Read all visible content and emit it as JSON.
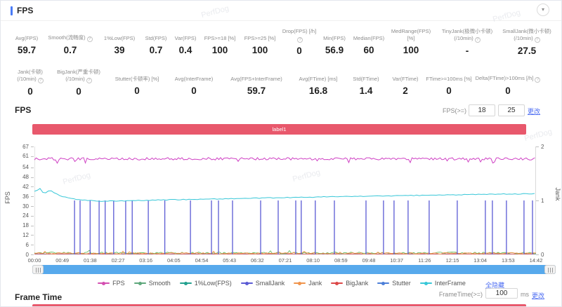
{
  "header": {
    "title": "FPS"
  },
  "icons": {
    "info": "?",
    "collapse": "▾"
  },
  "watermark_text": "PerfDog",
  "stats_row1": [
    {
      "key": "avg-fps",
      "line1": "Avg(FPS)",
      "line2": "",
      "info": false,
      "value": "59.7"
    },
    {
      "key": "smooth",
      "line1": "Smooth(流畅度)",
      "line2": "",
      "info": true,
      "value": "0.7"
    },
    {
      "key": "low1pct-fps",
      "line1": "1%Low(FPS)",
      "line2": "",
      "info": false,
      "value": "39"
    },
    {
      "key": "std-fps",
      "line1": "Std(FPS)",
      "line2": "",
      "info": false,
      "value": "0.7"
    },
    {
      "key": "var-fps",
      "line1": "Var(FPS)",
      "line2": "",
      "info": false,
      "value": "0.4"
    },
    {
      "key": "fps-ge-18",
      "line1": "FPS>=18 [%]",
      "line2": "",
      "info": false,
      "value": "100"
    },
    {
      "key": "fps-ge-25",
      "line1": "FPS>=25 [%]",
      "line2": "",
      "info": false,
      "value": "100"
    },
    {
      "key": "drop-fps",
      "line1": "Drop(FPS) [/h]",
      "line2": "",
      "info": true,
      "value": "0"
    },
    {
      "key": "min-fps",
      "line1": "Min(FPS)",
      "line2": "",
      "info": false,
      "value": "56.9"
    },
    {
      "key": "median-fps",
      "line1": "Median(FPS)",
      "line2": "",
      "info": false,
      "value": "60"
    },
    {
      "key": "medrange-fps",
      "line1": "MedRange(FPS)[%]",
      "line2": "",
      "info": false,
      "value": "100"
    },
    {
      "key": "tinyjank",
      "line1": "TinyJank(极微小卡顿)",
      "line2": "(/10min)",
      "info": true,
      "value": "-"
    },
    {
      "key": "smalljank",
      "line1": "SmallJank(微小卡顿)",
      "line2": "(/10min)",
      "info": true,
      "value": "27.5"
    }
  ],
  "stats_row2": [
    {
      "key": "jank",
      "line1": "Jank(卡顿)",
      "line2": "(/10min)",
      "info": true,
      "value": "0"
    },
    {
      "key": "bigjank",
      "line1": "BigJank(严重卡顿)",
      "line2": "(/10min)",
      "info": true,
      "value": "0"
    },
    {
      "key": "stutter",
      "line1": "Stutter(卡顿率) [%]",
      "line2": "",
      "info": false,
      "value": "0"
    },
    {
      "key": "avg-interframe",
      "line1": "Avg(InterFrame)",
      "line2": "",
      "info": false,
      "value": "0"
    },
    {
      "key": "avg-fps-interframe",
      "line1": "Avg(FPS+InterFrame)",
      "line2": "",
      "info": false,
      "value": "59.7"
    },
    {
      "key": "avg-ftime",
      "line1": "Avg(FTime) [ms]",
      "line2": "",
      "info": false,
      "value": "16.8"
    },
    {
      "key": "std-ftime",
      "line1": "Std(FTime)",
      "line2": "",
      "info": false,
      "value": "1.4"
    },
    {
      "key": "var-ftime",
      "line1": "Var(FTime)",
      "line2": "",
      "info": false,
      "value": "2"
    },
    {
      "key": "ftime-ge-100ms",
      "line1": "FTime>=100ms [%]",
      "line2": "",
      "info": false,
      "value": "0"
    },
    {
      "key": "delta-ftime",
      "line1": "Delta(FTime)>100ms [/h]",
      "line2": "",
      "info": true,
      "value": "0"
    }
  ],
  "fps_section": {
    "title": "FPS",
    "threshold_label": "FPS(>=)",
    "threshold1": "18",
    "threshold2": "25",
    "submit_label": "更改"
  },
  "banner": {
    "label": "label1"
  },
  "chart_data": {
    "type": "line",
    "ylabel": "FPS",
    "ylabel_right": "Jank",
    "y_max": 67,
    "right_max": 2,
    "y_ticks": [
      67,
      61,
      54,
      48,
      42,
      36,
      30,
      24,
      18,
      12,
      6,
      0
    ],
    "right_ticks": [
      2,
      1,
      0
    ],
    "x_labels": [
      "00:00",
      "00:49",
      "01:38",
      "02:27",
      "03:16",
      "04:05",
      "04:54",
      "05:43",
      "06:32",
      "07:21",
      "08:10",
      "08:59",
      "09:48",
      "10:37",
      "11:26",
      "12:15",
      "13:04",
      "13:53",
      "14:42"
    ],
    "legend": [
      {
        "name": "FPS",
        "color": "#d44fb1"
      },
      {
        "name": "Smooth",
        "color": "#5fa87c"
      },
      {
        "name": "1%Low(FPS)",
        "color": "#23a08f"
      },
      {
        "name": "SmallJank",
        "color": "#5a5ad4"
      },
      {
        "name": "Jank",
        "color": "#f0944c"
      },
      {
        "name": "BigJank",
        "color": "#dc4848"
      },
      {
        "name": "Stutter",
        "color": "#4d7fd8"
      },
      {
        "name": "InterFrame",
        "color": "#38c7d8"
      }
    ],
    "series": {
      "fps": {
        "mean": 59.3,
        "noise": 1.5,
        "dip": 2.0,
        "dip_chance": 0.06,
        "color": "#cf41c4"
      },
      "interframe": {
        "color": "#38c7d8",
        "points": [
          [
            0,
            39
          ],
          [
            8,
            41
          ],
          [
            14,
            37.5
          ],
          [
            22,
            40
          ],
          [
            38,
            36
          ],
          [
            58,
            34.2
          ],
          [
            95,
            33
          ],
          [
            180,
            33.8
          ],
          [
            300,
            34.8
          ],
          [
            420,
            35.8
          ],
          [
            540,
            36.6
          ],
          [
            640,
            37.3
          ],
          [
            714,
            37.7
          ]
        ]
      },
      "smalljank": {
        "color": "#5a5ad4",
        "jank_value": 1,
        "positions": [
          0.08,
          0.091,
          0.111,
          0.129,
          0.141,
          0.158,
          0.182,
          0.195,
          0.227,
          0.26,
          0.311,
          0.353,
          0.367,
          0.395,
          0.451,
          0.486,
          0.521,
          0.532,
          0.56,
          0.598,
          0.661,
          0.696,
          0.717,
          0.745,
          0.787,
          0.843,
          0.899,
          0.913,
          0.941,
          0.976,
          0.993
        ],
        "timestamps_note": "spikes each reach Jank=1 on right axis"
      },
      "smooth": {
        "base": 0.35,
        "noise": 1.1,
        "color": "#58b758"
      },
      "jank_markers": {
        "base": 0.2,
        "noise": 0.9,
        "color": "#f0944c"
      },
      "bigjank": {
        "base": 0.1,
        "noise": 0.3,
        "color": "#dc4848"
      },
      "stutter": {
        "base": 0.08,
        "color": "#4d7fd8"
      }
    }
  },
  "legend_extra": {
    "hide_all_label": "全隐藏"
  },
  "frametime_ctrl": {
    "label": "FrameTime(>=)",
    "value": "100",
    "unit": "ms",
    "submit_label": "更改"
  },
  "frametime_section": {
    "title": "Frame Time"
  },
  "colors": {
    "accent": "#4a7cf7",
    "banner": "#e8586c",
    "link": "#4e6ef2",
    "scrollbar": "#57a9ec"
  }
}
